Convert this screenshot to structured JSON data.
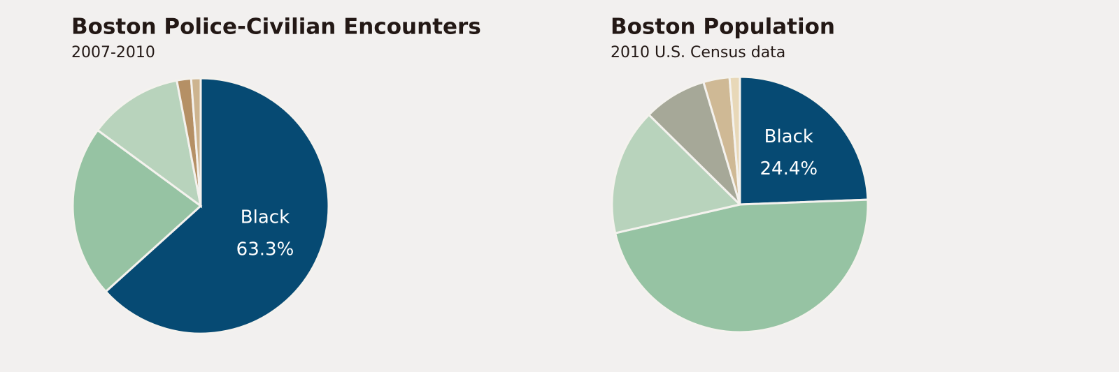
{
  "chart_data": [
    {
      "type": "pie",
      "title": "Boston Police-Civilian Encounters",
      "subtitle": "2007-2010",
      "categories": [
        "Black",
        null,
        null,
        null,
        null
      ],
      "values": [
        63.3,
        21.8,
        11.9,
        1.8,
        1.2
      ],
      "value_labels": [
        "63.3%",
        null,
        null,
        null,
        null
      ],
      "colors": [
        "#064a73",
        "#96c3a3",
        "#b8d3bc",
        "#b59065",
        "#cdb48f"
      ]
    },
    {
      "type": "pie",
      "title": "Boston Population",
      "subtitle": "2010 U.S. Census data",
      "categories": [
        "Black",
        null,
        null,
        null,
        null,
        null
      ],
      "values": [
        24.4,
        47.0,
        16.0,
        8.0,
        3.3,
        1.3
      ],
      "value_labels": [
        "24.4%",
        null,
        null,
        null,
        null,
        null
      ],
      "colors": [
        "#064a73",
        "#96c3a3",
        "#b8d3bc",
        "#a6a898",
        "#cfb995",
        "#e8d8b8"
      ]
    }
  ]
}
